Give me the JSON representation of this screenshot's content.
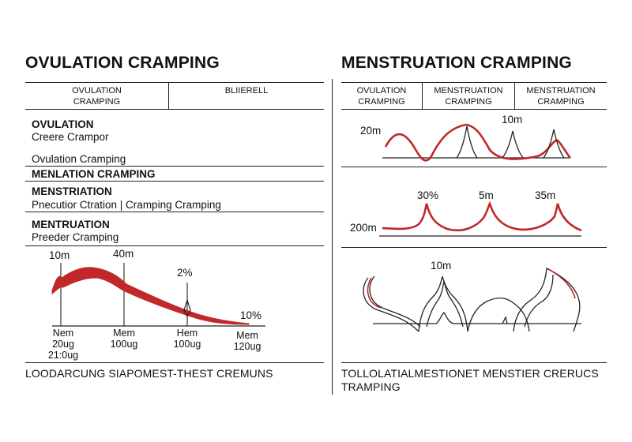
{
  "left": {
    "title": "OVULATION CRAMPING",
    "header_cols": [
      "OVULATION\nCRAMPING",
      "BLIIERELL"
    ],
    "rows": [
      {
        "heading": "OVULATION",
        "lines": [
          "Creere Crampor",
          "Ovulation Cramping"
        ]
      },
      {
        "heading": "MENLATION CRAMPING",
        "lines": []
      },
      {
        "heading": "MENSTRIATION",
        "lines": [
          "Pnecutior Ctration | Cramping Cramping"
        ]
      },
      {
        "heading": "MENTRUATION",
        "lines": [
          "Preeder Cramping"
        ]
      }
    ],
    "chart_labels": {
      "a": "10m",
      "b": "40m",
      "c": "2%",
      "d": "10%"
    },
    "x_ticks": [
      {
        "top": "Nem",
        "bottom": "20ug\n21:0ug"
      },
      {
        "top": "Mem",
        "bottom": "100ug"
      },
      {
        "top": "Hem",
        "bottom": "100ug"
      },
      {
        "top": "Mem",
        "bottom": "120ug"
      }
    ],
    "footer": "LOODARCUNG SIAPOMEST-THEST  CREMUNS"
  },
  "right": {
    "title": "MENSTRUATION CRAMPING",
    "header_cols": [
      "OVULATION\nCRAMPING",
      "MENSTRUATION\nCRAMPING",
      "MENSTRUATION\nCRAMPING"
    ],
    "panel1": {
      "y_label": "20m",
      "peak_label": "10m"
    },
    "panel2": {
      "y_label": "200m",
      "labels": [
        "30%",
        "5m",
        "35m"
      ]
    },
    "panel3": {
      "peak_label": "10m"
    },
    "footer_line1": "TOLLOLATIALMESTIONET MENSTIER CRERUCS",
    "footer_line2": "TRAMPING"
  },
  "colors": {
    "line": "#222222",
    "accent": "#c0282a"
  }
}
